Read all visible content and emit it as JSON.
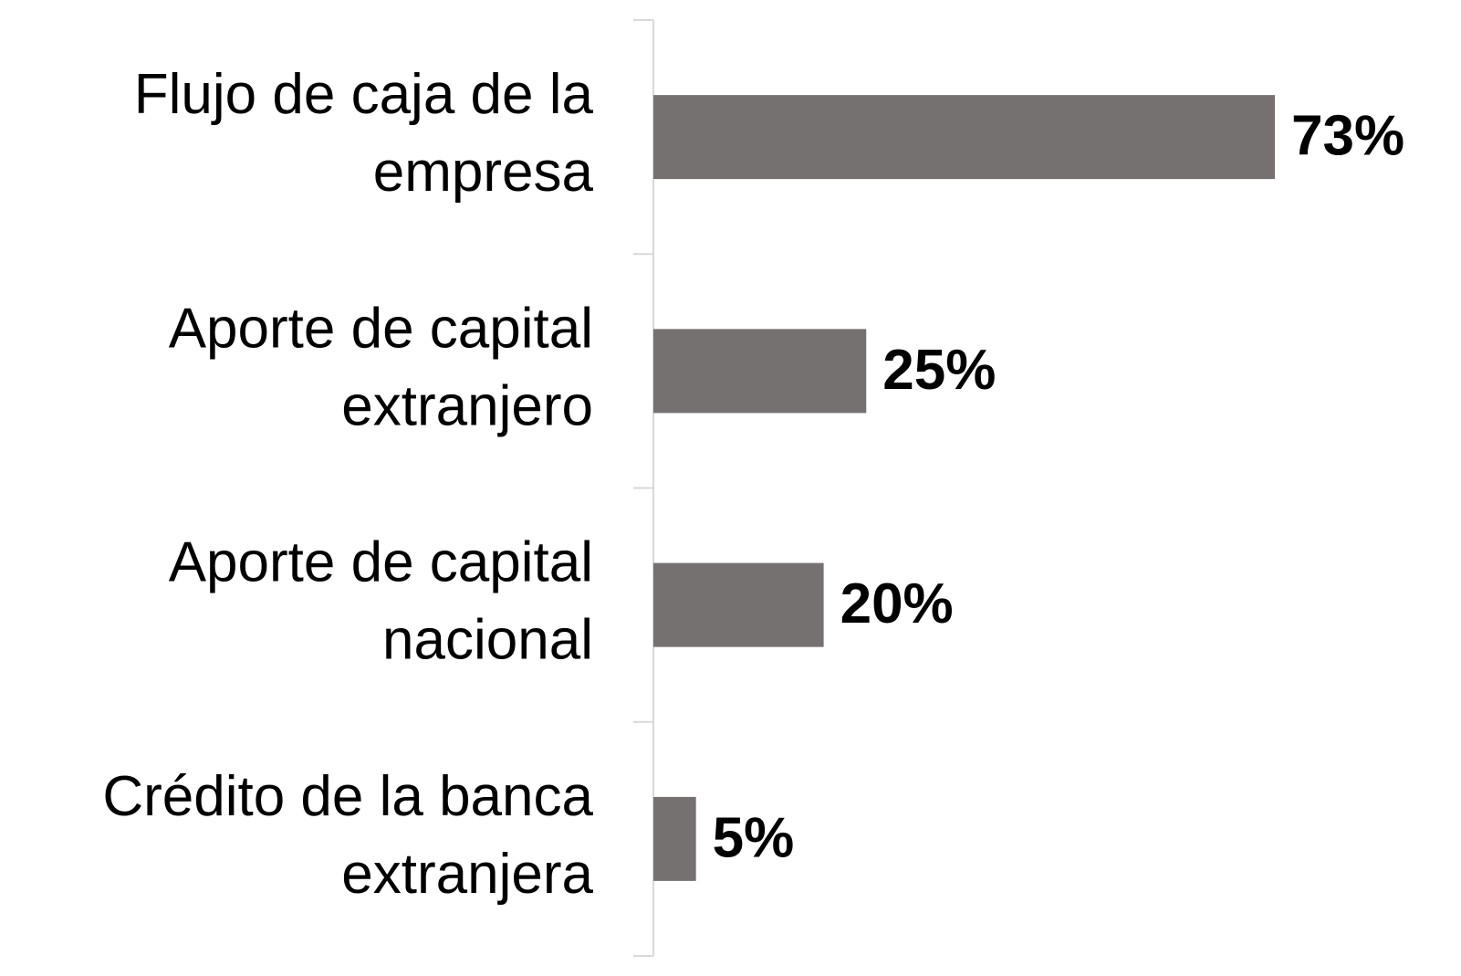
{
  "chart_data": {
    "type": "barh",
    "categories": [
      [
        "Flujo de caja de la",
        "empresa"
      ],
      [
        "Aporte de capital",
        "extranjero"
      ],
      [
        "Aporte de capital",
        "nacional"
      ],
      [
        "Crédito de la banca",
        "extranjera"
      ]
    ],
    "values": [
      73,
      25,
      20,
      5
    ],
    "value_labels": [
      "73%",
      "25%",
      "20%",
      "5%"
    ],
    "color": "#767171"
  }
}
